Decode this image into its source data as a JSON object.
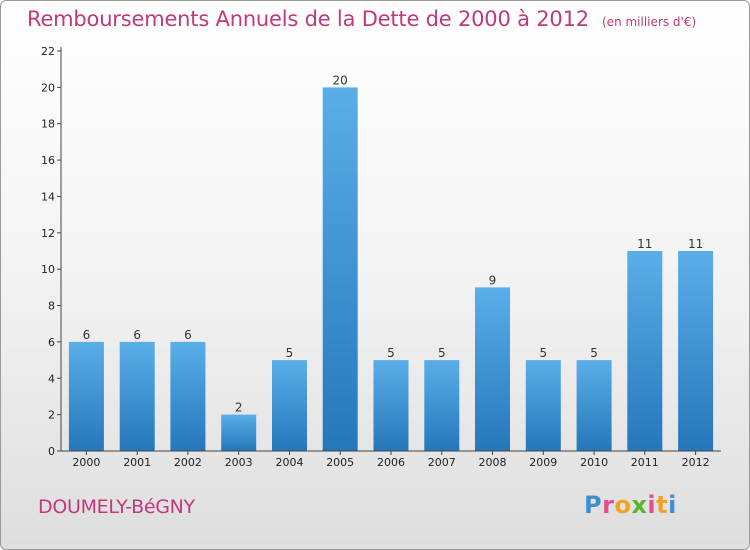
{
  "header": {
    "title": "Remboursements Annuels de la Dette de 2000 à 2012",
    "unit": "(en milliers d'€)"
  },
  "footer": {
    "commune": "DOUMELY-BéGNY",
    "logo_letters": [
      "P",
      "r",
      "o",
      "x",
      "i",
      "t",
      "i"
    ],
    "logo_colors": [
      "#3f8fd0",
      "#e94c8e",
      "#f1a21f",
      "#58b530",
      "#e94c8e",
      "#f1a21f",
      "#3f8fd0"
    ]
  },
  "colors": {
    "title": "#c0397b",
    "bar_top": "#5aaee8",
    "bar_bottom": "#2577bb"
  },
  "chart_data": {
    "type": "bar",
    "title": "Remboursements Annuels de la Dette de 2000 à 2012",
    "ylabel": "en milliers d'€",
    "xlabel": "",
    "categories": [
      "2000",
      "2001",
      "2002",
      "2003",
      "2004",
      "2005",
      "2006",
      "2007",
      "2008",
      "2009",
      "2010",
      "2011",
      "2012"
    ],
    "values": [
      6,
      6,
      6,
      2,
      5,
      20,
      5,
      5,
      9,
      5,
      5,
      11,
      11
    ],
    "ylim": [
      0,
      22
    ],
    "yticks": [
      0,
      2,
      4,
      6,
      8,
      10,
      12,
      14,
      16,
      18,
      20,
      22
    ],
    "grid": false,
    "legend": "none"
  }
}
